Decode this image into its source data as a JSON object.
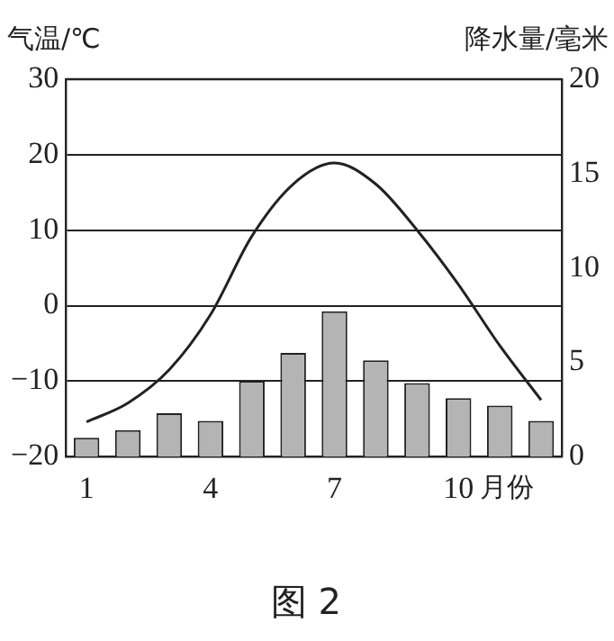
{
  "chart_data": {
    "type": "bar",
    "xlabel": "月份",
    "ylabel": "气温/℃",
    "y2label": "降水量/毫米",
    "categories": [
      "1",
      null,
      null,
      "4",
      null,
      null,
      "7",
      null,
      null,
      "10",
      null,
      null
    ],
    "series": [
      {
        "axis": "y2",
        "color": "#b4b4b4",
        "values": [
          1.0,
          1.4,
          2.3,
          1.9,
          4.0,
          5.5,
          7.7,
          5.1,
          3.9,
          3.1,
          2.7,
          1.9
        ]
      },
      {
        "type": "line",
        "axis": "y",
        "color": "#222222",
        "values": [
          -15.4,
          -12.9,
          -8.5,
          -1.2,
          9.2,
          16.1,
          18.9,
          16.1,
          10,
          2.8,
          -5.3,
          -12.5
        ]
      }
    ],
    "ylim": [
      -20,
      30
    ],
    "yticks": [
      -20,
      -10,
      0,
      10,
      20,
      30
    ],
    "y2lim": [
      0,
      20
    ],
    "y2ticks": [
      0,
      5,
      10,
      15,
      20
    ],
    "grid": "y",
    "legend": false,
    "marker": "none",
    "line_style": "solid",
    "annotations": [
      "图 2"
    ]
  }
}
